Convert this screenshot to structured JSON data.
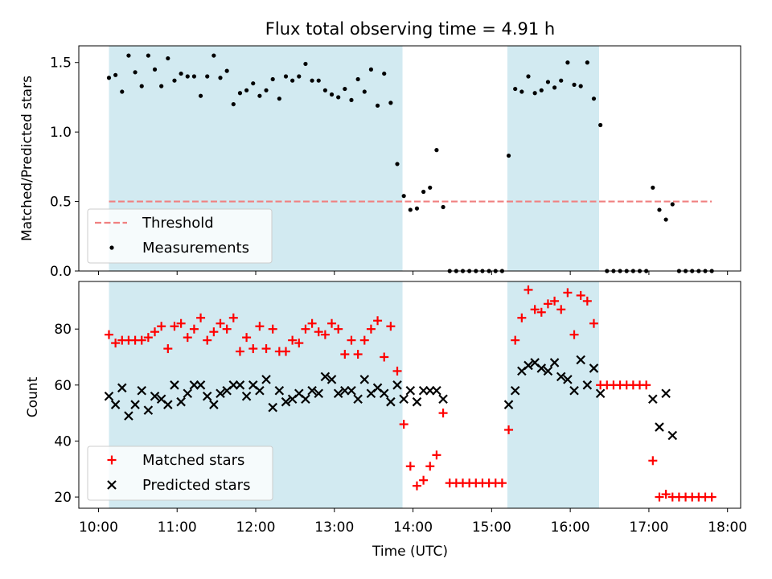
{
  "colors": {
    "shade": "#add8e6",
    "threshold": "#f08080",
    "matched": "#ff0000",
    "predicted": "#000000",
    "measurement": "#000000"
  },
  "chart_data": [
    {
      "type": "scatter",
      "title": "Flux total observing time = 4.91 h",
      "xlabel": "",
      "ylabel": "Matched/Predicted stars",
      "xlim": [
        "09:45",
        "18:10"
      ],
      "ylim": [
        0,
        1.62
      ],
      "yticks": [
        "0.0",
        "0.5",
        "1.0",
        "1.5"
      ],
      "grid": false,
      "legend_position": "lower-left",
      "shaded_intervals": [
        [
          "10:08",
          "13:52"
        ],
        [
          "15:12",
          "16:22"
        ]
      ],
      "threshold": {
        "name": "Threshold",
        "value": 0.5,
        "x": [
          "10:08",
          "17:48"
        ]
      },
      "series": [
        {
          "name": "Measurements",
          "x": [
            "10:08",
            "10:13",
            "10:18",
            "10:23",
            "10:28",
            "10:33",
            "10:38",
            "10:43",
            "10:48",
            "10:53",
            "10:58",
            "11:03",
            "11:08",
            "11:13",
            "11:18",
            "11:23",
            "11:28",
            "11:33",
            "11:38",
            "11:43",
            "11:48",
            "11:53",
            "11:58",
            "12:03",
            "12:08",
            "12:13",
            "12:18",
            "12:23",
            "12:28",
            "12:33",
            "12:38",
            "12:43",
            "12:48",
            "12:53",
            "12:58",
            "13:03",
            "13:08",
            "13:13",
            "13:18",
            "13:23",
            "13:28",
            "13:33",
            "13:38",
            "13:43",
            "13:48",
            "13:53",
            "13:58",
            "14:03",
            "14:08",
            "14:13",
            "14:18",
            "14:23",
            "14:28",
            "14:33",
            "14:38",
            "14:43",
            "14:48",
            "14:53",
            "14:58",
            "15:03",
            "15:08",
            "15:13",
            "15:18",
            "15:23",
            "15:28",
            "15:33",
            "15:38",
            "15:43",
            "15:48",
            "15:53",
            "15:58",
            "16:03",
            "16:08",
            "16:13",
            "16:18",
            "16:23",
            "16:28",
            "16:33",
            "16:38",
            "16:43",
            "16:48",
            "16:53",
            "16:58",
            "17:03",
            "17:08",
            "17:13",
            "17:18",
            "17:23",
            "17:28",
            "17:33",
            "17:38",
            "17:43",
            "17:48"
          ],
          "y": [
            1.39,
            1.41,
            1.29,
            1.55,
            1.43,
            1.33,
            1.55,
            1.45,
            1.33,
            1.53,
            1.37,
            1.42,
            1.4,
            1.4,
            1.26,
            1.4,
            1.55,
            1.39,
            1.44,
            1.2,
            1.28,
            1.3,
            1.35,
            1.26,
            1.3,
            1.38,
            1.24,
            1.4,
            1.37,
            1.4,
            1.49,
            1.37,
            1.37,
            1.3,
            1.27,
            1.25,
            1.31,
            1.23,
            1.38,
            1.29,
            1.45,
            1.19,
            1.42,
            1.21,
            0.77,
            0.54,
            0.44,
            0.45,
            0.57,
            0.6,
            0.87,
            0.46,
            0.0,
            0.0,
            0.0,
            0.0,
            0.0,
            0.0,
            0.0,
            0.0,
            0.0,
            0.83,
            1.31,
            1.29,
            1.4,
            1.28,
            1.3,
            1.36,
            1.32,
            1.37,
            1.5,
            1.34,
            1.33,
            1.5,
            1.24,
            1.05,
            0.0,
            0.0,
            0.0,
            0.0,
            0.0,
            0.0,
            0.0,
            0.6,
            0.44,
            0.37,
            0.48,
            0.0,
            0.0,
            0.0,
            0.0,
            0.0,
            0.0
          ]
        }
      ]
    },
    {
      "type": "scatter",
      "title": "",
      "xlabel": "Time (UTC)",
      "ylabel": "Count",
      "xlim": [
        "09:45",
        "18:10"
      ],
      "ylim": [
        16,
        97
      ],
      "xticks": [
        "10:00",
        "11:00",
        "12:00",
        "13:00",
        "14:00",
        "15:00",
        "16:00",
        "17:00",
        "18:00"
      ],
      "yticks": [
        "20",
        "40",
        "60",
        "80"
      ],
      "grid": false,
      "legend_position": "lower-left",
      "shaded_intervals": [
        [
          "10:08",
          "13:52"
        ],
        [
          "15:12",
          "16:22"
        ]
      ],
      "series": [
        {
          "name": "Matched stars",
          "marker": "plus",
          "x": [
            "10:08",
            "10:13",
            "10:18",
            "10:23",
            "10:28",
            "10:33",
            "10:38",
            "10:43",
            "10:48",
            "10:53",
            "10:58",
            "11:03",
            "11:08",
            "11:13",
            "11:18",
            "11:23",
            "11:28",
            "11:33",
            "11:38",
            "11:43",
            "11:48",
            "11:53",
            "11:58",
            "12:03",
            "12:08",
            "12:13",
            "12:18",
            "12:23",
            "12:28",
            "12:33",
            "12:38",
            "12:43",
            "12:48",
            "12:53",
            "12:58",
            "13:03",
            "13:08",
            "13:13",
            "13:18",
            "13:23",
            "13:28",
            "13:33",
            "13:38",
            "13:43",
            "13:48",
            "13:53",
            "13:58",
            "14:03",
            "14:08",
            "14:13",
            "14:18",
            "14:23",
            "14:28",
            "14:33",
            "14:38",
            "14:43",
            "14:48",
            "14:53",
            "14:58",
            "15:03",
            "15:08",
            "15:13",
            "15:18",
            "15:23",
            "15:28",
            "15:33",
            "15:38",
            "15:43",
            "15:48",
            "15:53",
            "15:58",
            "16:03",
            "16:08",
            "16:13",
            "16:18",
            "16:23",
            "16:28",
            "16:33",
            "16:38",
            "16:43",
            "16:48",
            "16:53",
            "16:58",
            "17:03",
            "17:08",
            "17:13",
            "17:18",
            "17:23",
            "17:28",
            "17:33",
            "17:38",
            "17:43",
            "17:48"
          ],
          "y": [
            78,
            75,
            76,
            76,
            76,
            76,
            77,
            79,
            81,
            73,
            81,
            82,
            77,
            80,
            84,
            76,
            79,
            82,
            80,
            84,
            72,
            77,
            73,
            81,
            73,
            80,
            72,
            72,
            76,
            75,
            80,
            82,
            79,
            78,
            82,
            80,
            71,
            76,
            71,
            76,
            80,
            83,
            70,
            81,
            65,
            46,
            31,
            24,
            26,
            31,
            35,
            50,
            25,
            25,
            25,
            25,
            25,
            25,
            25,
            25,
            25,
            44,
            76,
            84,
            94,
            87,
            86,
            89,
            90,
            87,
            93,
            78,
            92,
            90,
            82,
            60,
            60,
            60,
            60,
            60,
            60,
            60,
            60,
            33,
            20,
            21,
            20,
            20,
            20,
            20,
            20,
            20,
            20
          ]
        },
        {
          "name": "Predicted stars",
          "marker": "x",
          "x": [
            "10:08",
            "10:13",
            "10:18",
            "10:23",
            "10:28",
            "10:33",
            "10:38",
            "10:43",
            "10:48",
            "10:53",
            "10:58",
            "11:03",
            "11:08",
            "11:13",
            "11:18",
            "11:23",
            "11:28",
            "11:33",
            "11:38",
            "11:43",
            "11:48",
            "11:53",
            "11:58",
            "12:03",
            "12:08",
            "12:13",
            "12:18",
            "12:23",
            "12:28",
            "12:33",
            "12:38",
            "12:43",
            "12:48",
            "12:53",
            "12:58",
            "13:03",
            "13:08",
            "13:13",
            "13:18",
            "13:23",
            "13:28",
            "13:33",
            "13:38",
            "13:43",
            "13:48",
            "13:53",
            "13:58",
            "14:03",
            "14:08",
            "14:13",
            "14:18",
            "14:23",
            "15:13",
            "15:18",
            "15:23",
            "15:28",
            "15:33",
            "15:38",
            "15:43",
            "15:48",
            "15:53",
            "15:58",
            "16:03",
            "16:08",
            "16:13",
            "16:18",
            "16:23",
            "17:03",
            "17:08",
            "17:13",
            "17:18"
          ],
          "y": [
            56,
            53,
            59,
            49,
            53,
            58,
            51,
            56,
            55,
            53,
            60,
            54,
            57,
            60,
            60,
            56,
            53,
            57,
            58,
            60,
            60,
            56,
            60,
            58,
            62,
            52,
            58,
            54,
            55,
            57,
            55,
            58,
            57,
            63,
            62,
            57,
            58,
            58,
            55,
            62,
            57,
            59,
            57,
            54,
            60,
            55,
            58,
            54,
            58,
            58,
            58,
            55,
            53,
            58,
            65,
            67,
            68,
            66,
            65,
            68,
            63,
            62,
            58,
            69,
            60,
            66,
            57,
            55,
            45,
            57,
            42
          ]
        }
      ]
    }
  ]
}
